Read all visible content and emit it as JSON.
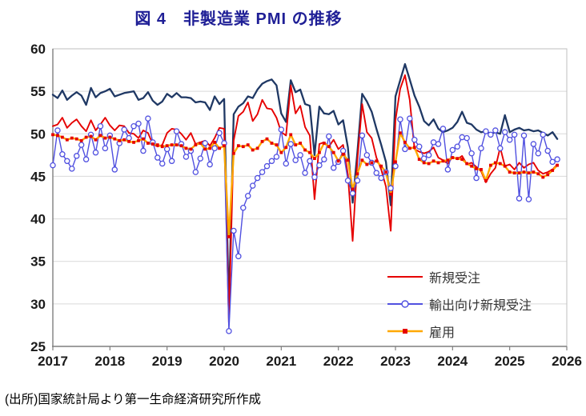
{
  "title": "図 4　非製造業 PMI の推移",
  "source": "(出所)国家統計局より第一生命経済研究所作成",
  "colors": {
    "title": "#1F1F96",
    "grid": "#D9D9D9",
    "plot_border": "#BFBFBF",
    "axis": "#7F7F7F",
    "tick_label": "#1a1a1a"
  },
  "chart_data": {
    "type": "line",
    "title": "図 4　非製造業 PMI の推移",
    "x_unit": "month",
    "x_range": [
      "2017-01",
      "2025-11"
    ],
    "x_ticks": [
      "2017",
      "2018",
      "2019",
      "2020",
      "2021",
      "2022",
      "2023",
      "2024",
      "2025",
      "2026"
    ],
    "y_ticks": [
      25,
      30,
      35,
      40,
      45,
      50,
      55,
      60
    ],
    "ylim": [
      25,
      60
    ],
    "grid": "horizontal",
    "legend_position": "inside-lower-right",
    "series": [
      {
        "key": "pmi-headline",
        "name": "",
        "in_legend": false,
        "color": "#1F3864",
        "marker": "none",
        "line_width": 2.3,
        "values": [
          54.6,
          54.2,
          55.1,
          54.0,
          54.5,
          54.9,
          54.5,
          53.4,
          55.4,
          54.3,
          54.8,
          55.0,
          55.3,
          54.4,
          54.6,
          54.8,
          54.9,
          55.0,
          54.0,
          54.2,
          54.9,
          53.9,
          53.4,
          53.8,
          54.7,
          54.3,
          54.8,
          54.3,
          54.3,
          54.2,
          53.7,
          53.8,
          53.7,
          52.8,
          54.4,
          53.5,
          54.1,
          29.6,
          52.3,
          53.2,
          53.6,
          54.4,
          54.2,
          55.2,
          55.9,
          56.2,
          56.4,
          55.7,
          52.4,
          51.4,
          56.3,
          54.9,
          55.2,
          53.5,
          53.3,
          47.5,
          53.2,
          52.4,
          52.3,
          52.7,
          51.1,
          51.6,
          48.4,
          41.9,
          47.8,
          54.7,
          53.8,
          52.6,
          50.6,
          48.7,
          46.7,
          41.6,
          54.4,
          56.3,
          58.2,
          56.4,
          54.5,
          53.2,
          51.5,
          51.0,
          51.7,
          50.6,
          50.2,
          50.4,
          50.7,
          51.4,
          52.6,
          51.3,
          51.1,
          50.5,
          50.2,
          50.3,
          50.0,
          50.2,
          50.0,
          52.2,
          50.2,
          50.5,
          50.7,
          50.4,
          50.5,
          50.3,
          50.4,
          50.1,
          49.8,
          50.2,
          49.4
        ]
      },
      {
        "key": "new-orders",
        "name": "新規受注",
        "in_legend": true,
        "color": "#E60000",
        "marker": "none",
        "line_width": 1.9,
        "values": [
          50.9,
          51.1,
          51.9,
          50.7,
          51.3,
          51.7,
          50.9,
          50.3,
          51.6,
          50.4,
          51.1,
          51.9,
          51.0,
          50.4,
          51.0,
          50.9,
          50.1,
          50.0,
          49.5,
          50.4,
          50.1,
          48.8,
          48.5,
          48.7,
          50.1,
          50.6,
          50.5,
          50.0,
          49.3,
          50.1,
          48.8,
          49.0,
          49.2,
          48.6,
          49.5,
          50.7,
          50.6,
          27.8,
          49.2,
          52.1,
          52.6,
          53.7,
          51.5,
          52.3,
          54.0,
          53.0,
          52.9,
          51.9,
          50.2,
          49.8,
          55.7,
          52.4,
          53.3,
          50.8,
          49.8,
          42.3,
          48.8,
          49.0,
          48.5,
          49.3,
          48.2,
          48.7,
          45.2,
          37.4,
          46.9,
          53.5,
          50.2,
          49.5,
          47.2,
          45.8,
          43.8,
          38.6,
          51.6,
          55.3,
          56.9,
          54.0,
          48.2,
          47.9,
          47.7,
          47.9,
          48.4,
          47.2,
          46.9,
          46.5,
          47.3,
          47.0,
          47.4,
          46.4,
          46.6,
          46.1,
          45.6,
          44.3,
          45.3,
          46.0,
          48.4,
          46.2,
          46.4,
          45.8,
          46.6,
          46.0,
          46.4,
          46.6,
          45.7,
          45.3,
          45.5,
          45.8,
          46.4
        ]
      },
      {
        "key": "export-new-orders",
        "name": "輸出向け新規受注",
        "in_legend": true,
        "color": "#5050E0",
        "marker": "circle",
        "line_width": 1.4,
        "values": [
          46.3,
          50.4,
          47.6,
          46.8,
          45.9,
          47.4,
          48.7,
          47.0,
          49.9,
          47.8,
          50.9,
          48.3,
          49.8,
          45.8,
          48.9,
          50.5,
          49.5,
          50.9,
          51.2,
          48.0,
          51.8,
          49.0,
          47.2,
          46.5,
          48.2,
          46.8,
          50.3,
          48.8,
          47.3,
          48.0,
          45.5,
          47.1,
          48.9,
          46.4,
          48.3,
          50.1,
          48.9,
          26.8,
          38.6,
          35.6,
          41.3,
          42.7,
          43.9,
          44.8,
          45.5,
          46.2,
          46.8,
          47.3,
          50.5,
          46.5,
          48.8,
          46.9,
          47.5,
          45.4,
          46.8,
          44.9,
          46.3,
          47.0,
          49.7,
          46.0,
          46.7,
          48.0,
          44.5,
          43.0,
          44.5,
          49.8,
          47.5,
          46.6,
          45.4,
          44.8,
          45.5,
          43.6,
          46.2,
          51.7,
          48.2,
          51.8,
          49.3,
          48.5,
          47.1,
          47.5,
          49.0,
          48.8,
          50.6,
          45.8,
          48.1,
          48.5,
          49.6,
          49.5,
          47.7,
          44.8,
          48.3,
          50.3,
          49.9,
          50.4,
          48.3,
          50.2,
          49.3,
          49.9,
          42.4,
          49.8,
          42.3,
          48.8,
          47.7,
          49.9,
          48.0,
          46.7,
          47.0
        ]
      },
      {
        "key": "employment",
        "name": "雇用",
        "in_legend": true,
        "color": "#FFA800",
        "marker": "square",
        "marker_color": "#E60000",
        "line_width": 2.4,
        "values": [
          49.9,
          49.8,
          49.6,
          49.3,
          49.5,
          49.4,
          49.2,
          49.6,
          49.7,
          49.3,
          49.8,
          49.5,
          49.6,
          49.4,
          49.2,
          49.3,
          49.1,
          49.0,
          49.2,
          49.4,
          48.9,
          48.8,
          48.7,
          48.5,
          48.6,
          48.7,
          48.7,
          48.6,
          48.3,
          48.2,
          48.7,
          48.9,
          48.2,
          48.3,
          49.0,
          48.3,
          48.6,
          37.9,
          47.7,
          48.6,
          48.5,
          48.7,
          48.1,
          48.3,
          49.1,
          49.4,
          48.9,
          48.7,
          47.8,
          48.4,
          49.9,
          48.7,
          48.9,
          48.1,
          47.8,
          47.1,
          47.8,
          48.9,
          48.5,
          47.8,
          46.8,
          47.6,
          46.9,
          43.5,
          45.3,
          46.9,
          46.4,
          46.6,
          46.8,
          46.2,
          45.5,
          42.9,
          46.7,
          50.1,
          49.0,
          48.3,
          48.4,
          47.0,
          46.6,
          46.5,
          46.8,
          46.6,
          46.8,
          46.9,
          47.2,
          47.1,
          47.0,
          46.5,
          46.2,
          45.9,
          45.8,
          44.5,
          46.3,
          46.6,
          46.5,
          46.2,
          45.5,
          45.4,
          45.4,
          45.5,
          45.4,
          45.5,
          45.3,
          44.9,
          45.2,
          45.7,
          46.3
        ]
      }
    ]
  }
}
